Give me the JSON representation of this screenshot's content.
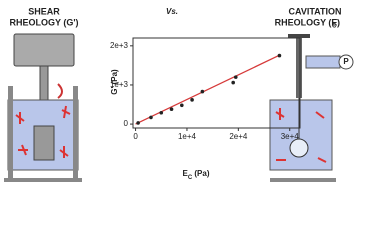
{
  "chart_data": {
    "type": "scatter",
    "ylabel": "G' (Pa)",
    "xlabel_main": "E",
    "xlabel_sub": "C",
    "xlabel_unit": " (Pa)",
    "x": [
      500,
      3000,
      5000,
      7000,
      9000,
      11000,
      13000,
      19000,
      19500,
      28000
    ],
    "values": [
      30,
      170,
      290,
      380,
      480,
      620,
      830,
      1060,
      1200,
      1750
    ],
    "color": "#222222",
    "fit_color": "#d63a3a",
    "fit_line": [
      [
        0,
        0
      ],
      [
        28000,
        1760
      ]
    ],
    "xlim": [
      -500,
      32000
    ],
    "ylim": [
      -100,
      2200
    ],
    "xticks": [
      0,
      {
        "value": 10000,
        "label": "1e+4"
      },
      {
        "value": 20000,
        "label": "2e+4"
      },
      {
        "value": 30000,
        "label": "3e+4"
      }
    ],
    "yticks": [
      0,
      {
        "value": 1000,
        "label": "1e+3"
      },
      {
        "value": 2000,
        "label": "2e+3"
      }
    ]
  },
  "labels": {
    "left_title_1": "SHEAR",
    "left_title_2": "RHEOLOGY (G')",
    "vs": "Vs.",
    "right_title_1": "CAVITATION",
    "right_title_2": "RHEOLOGY (E",
    "right_title_sub": "C",
    "right_title_end": ")",
    "pressure": "P"
  }
}
